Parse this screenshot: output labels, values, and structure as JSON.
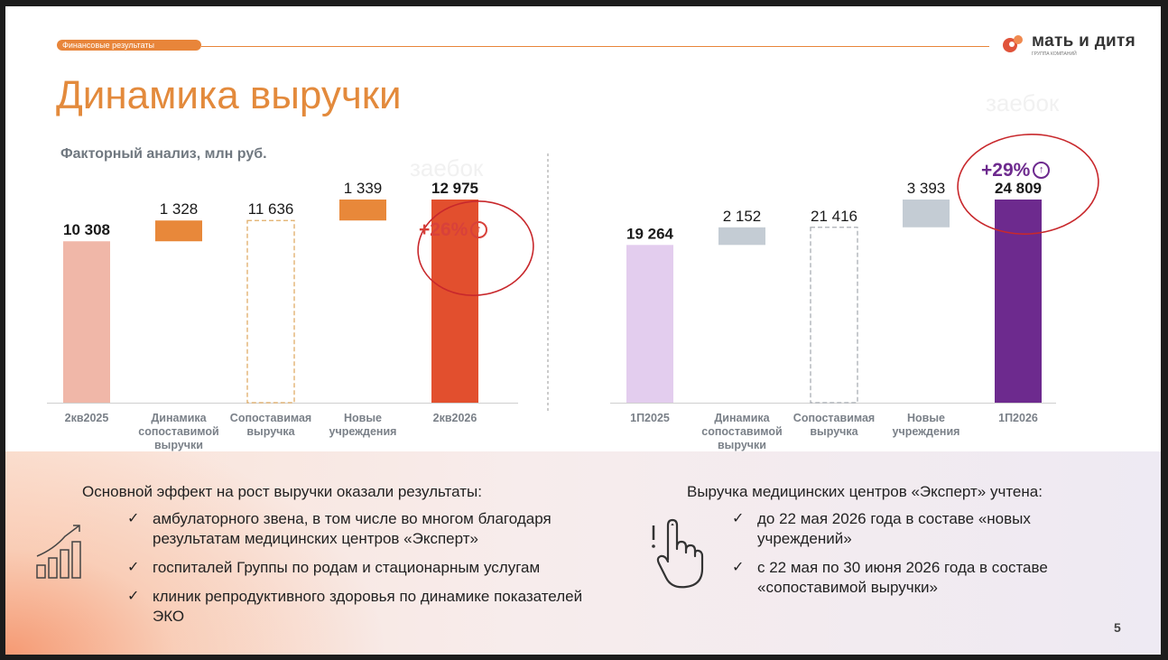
{
  "header": {
    "section": "Финансовые результаты",
    "title": "Динамика выручки",
    "subtitle": "Факторный анализ, млн руб.",
    "logo": {
      "name": "мать и дитя",
      "tagline": "ГРУППА КОМПАНИЙ"
    },
    "watermark": "заебок"
  },
  "chart_data": [
    {
      "type": "bar",
      "subtype": "waterfall",
      "categories": [
        "2кв2025",
        "Динамика сопоставимой выручки",
        "Сопоставимая выручка",
        "Новые учреждения",
        "2кв2026"
      ],
      "values": [
        10308,
        1328,
        11636,
        1339,
        12975
      ],
      "labels": [
        "10 308",
        "1 328",
        "11 636",
        "1 339",
        "12 975"
      ],
      "annotation": "+26%",
      "colors": [
        "#f0b7a8",
        "#e8883a",
        "#e0ac66",
        "#e8883a",
        "#e24f2e"
      ],
      "ylim": [
        0,
        19000
      ]
    },
    {
      "type": "bar",
      "subtype": "waterfall",
      "categories": [
        "1П2025",
        "Динамика сопоставимой выручки",
        "Сопоставимая выручка",
        "Новые учреждения",
        "1П2026"
      ],
      "values": [
        19264,
        2152,
        21416,
        3393,
        24809
      ],
      "labels": [
        "19 264",
        "2 152",
        "21 416",
        "3 393",
        "24 809"
      ],
      "annotation": "+29%",
      "colors": [
        "#e3cdee",
        "#c4ccd4",
        "#a9aeb4",
        "#c4ccd4",
        "#6d2a8e"
      ],
      "ylim": [
        0,
        26000
      ]
    }
  ],
  "notes": {
    "left_lead": "Основной эффект на рост выручки оказали результаты:",
    "left_items": [
      "амбулаторного звена, в том числе во многом благодаря результатам медицинских центров «Эксперт»",
      "госпиталей Группы по родам и стационарным услугам",
      "клиник репродуктивного здоровья по динамике показателей ЭКО"
    ],
    "right_lead": "Выручка медицинских центров «Эксперт» учтена:",
    "right_items": [
      "до 22 мая 2026 года в составе «новых учреждений»",
      "с 22 мая по 30 июня 2026 года в составе «сопоставимой выручки»"
    ]
  },
  "page_number": "5",
  "colors": {
    "accent": "#e38a3c",
    "annotation_red": "#c8282c",
    "annotation_purple": "#6d2a8e"
  }
}
